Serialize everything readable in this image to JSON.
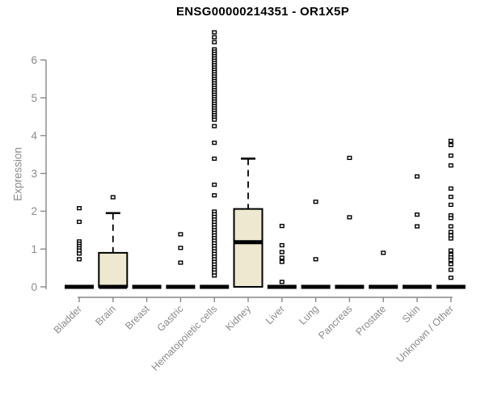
{
  "chart_data": {
    "type": "boxplot",
    "title": "ENSG00000214351 - OR1X5P",
    "ylabel": "Expression",
    "xlabel": "",
    "ylim": [
      0,
      6.9
    ],
    "yticks": [
      0,
      1,
      2,
      3,
      4,
      5,
      6
    ],
    "grid": false,
    "legend": "none",
    "colors": {
      "box_fill": "#ede8cf",
      "box_border": "#000000",
      "median": "#000000",
      "outlier": "#000000",
      "axis": "#898989",
      "tick_text": "#8a8a8a",
      "title_text": "#000000"
    },
    "categories": [
      "Bladder",
      "Brain",
      "Breast",
      "Gastric",
      "Hematopoietic cells",
      "Kidney",
      "Liver",
      "Lung",
      "Pancreas",
      "Prostate",
      "Skin",
      "Unknown / Other"
    ],
    "series": [
      {
        "name": "Bladder",
        "q1": 0,
        "median": 0,
        "q3": 0,
        "whisker_low": 0,
        "whisker_high": 0,
        "outliers": [
          2.08,
          1.72,
          1.2,
          1.14,
          1.08,
          1.02,
          0.96,
          0.88,
          0.73
        ]
      },
      {
        "name": "Brain",
        "q1": 0,
        "median": 0,
        "q3": 0.9,
        "whisker_low": 0,
        "whisker_high": 1.95,
        "outliers": [
          2.37
        ]
      },
      {
        "name": "Breast",
        "q1": 0,
        "median": 0,
        "q3": 0,
        "whisker_low": 0,
        "whisker_high": 0,
        "outliers": []
      },
      {
        "name": "Gastric",
        "q1": 0,
        "median": 0,
        "q3": 0,
        "whisker_low": 0,
        "whisker_high": 0,
        "outliers": [
          1.39,
          1.03,
          0.64
        ]
      },
      {
        "name": "Hematopoietic cells",
        "q1": 0,
        "median": 0,
        "q3": 0,
        "whisker_low": 0,
        "whisker_high": 0,
        "outliers": [
          6.73,
          6.6,
          6.47,
          6.28,
          6.22,
          6.16,
          6.1,
          6.04,
          5.98,
          5.92,
          5.86,
          5.8,
          5.74,
          5.68,
          5.62,
          5.56,
          5.5,
          5.44,
          5.38,
          5.32,
          5.26,
          5.2,
          5.14,
          5.08,
          5.02,
          4.96,
          4.9,
          4.84,
          4.78,
          4.72,
          4.66,
          4.6,
          4.54,
          4.48,
          4.42,
          4.25,
          3.81,
          3.39,
          2.7,
          2.42,
          1.99,
          1.92,
          1.85,
          1.78,
          1.71,
          1.64,
          1.57,
          1.5,
          1.43,
          1.36,
          1.29,
          1.22,
          1.15,
          1.08,
          1.01,
          0.94,
          0.87,
          0.8,
          0.73,
          0.66,
          0.59,
          0.52,
          0.45,
          0.38,
          0.3
        ]
      },
      {
        "name": "Kidney",
        "q1": 0,
        "median": 1.18,
        "q3": 2.06,
        "whisker_low": 0,
        "whisker_high": 3.39,
        "outliers": []
      },
      {
        "name": "Liver",
        "q1": 0,
        "median": 0,
        "q3": 0,
        "whisker_low": 0,
        "whisker_high": 0,
        "outliers": [
          1.61,
          1.1,
          0.92,
          0.77,
          0.66,
          0.13
        ]
      },
      {
        "name": "Lung",
        "q1": 0,
        "median": 0,
        "q3": 0,
        "whisker_low": 0,
        "whisker_high": 0,
        "outliers": [
          2.25,
          0.73
        ]
      },
      {
        "name": "Pancreas",
        "q1": 0,
        "median": 0,
        "q3": 0,
        "whisker_low": 0,
        "whisker_high": 0,
        "outliers": [
          3.41,
          1.84
        ]
      },
      {
        "name": "Prostate",
        "q1": 0,
        "median": 0,
        "q3": 0,
        "whisker_low": 0,
        "whisker_high": 0,
        "outliers": [
          0.9
        ]
      },
      {
        "name": "Skin",
        "q1": 0,
        "median": 0,
        "q3": 0,
        "whisker_low": 0,
        "whisker_high": 0,
        "outliers": [
          2.92,
          1.91,
          1.6
        ]
      },
      {
        "name": "Unknown / Other",
        "q1": 0,
        "median": 0,
        "q3": 0,
        "whisker_low": 0,
        "whisker_high": 0,
        "outliers": [
          3.86,
          3.75,
          3.47,
          3.21,
          2.6,
          2.38,
          2.17,
          1.89,
          1.82,
          1.6,
          1.45,
          1.36,
          1.28,
          0.96,
          0.85,
          0.78,
          0.71,
          0.6,
          0.45,
          0.24
        ]
      }
    ]
  }
}
